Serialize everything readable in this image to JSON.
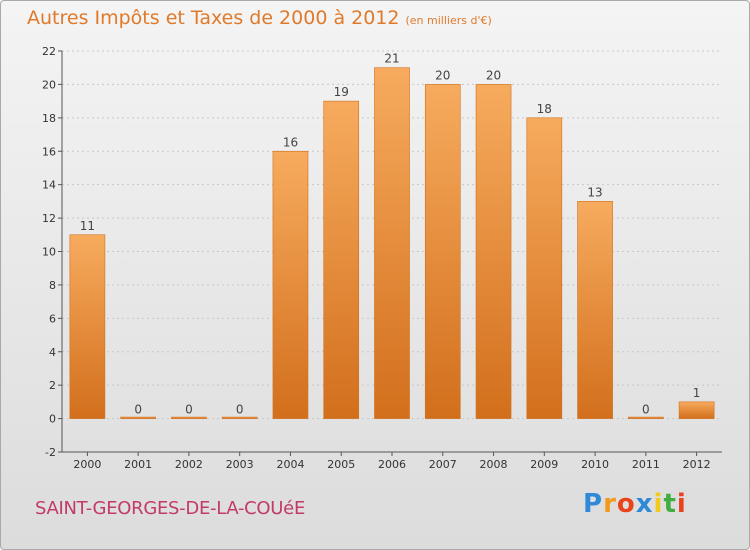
{
  "title": {
    "main": "Autres Impôts et Taxes de 2000 à 2012",
    "unit": "(en milliers d'€)"
  },
  "commune": "SAINT-GEORGES-DE-LA-COUéE",
  "logo": {
    "letters": [
      "P",
      "r",
      "o",
      "x",
      "i",
      "t",
      "i"
    ],
    "colors": [
      "#2e8ad8",
      "#f29a1f",
      "#e8431b",
      "#2e8ad8",
      "#f2c91f",
      "#3fae3f",
      "#e8431b"
    ]
  },
  "colors": {
    "bar": "#f0903a",
    "bar_light": "#f7ab5e",
    "bar_dark": "#d26f1c",
    "title": "#e07a2a",
    "commune": "#c23a6a"
  },
  "chart_data": {
    "type": "bar",
    "categories": [
      "2000",
      "2001",
      "2002",
      "2003",
      "2004",
      "2005",
      "2006",
      "2007",
      "2008",
      "2009",
      "2010",
      "2011",
      "2012"
    ],
    "values": [
      11,
      0,
      0,
      0,
      16,
      19,
      21,
      20,
      20,
      18,
      13,
      0,
      1
    ],
    "data_labels": [
      "11",
      "0",
      "0",
      "0",
      "16",
      "19",
      "21",
      "20",
      "20",
      "18",
      "13",
      "0",
      "1"
    ],
    "title": "Autres Impôts et Taxes de 2000 à 2012",
    "xlabel": "",
    "ylabel": "",
    "ylim": [
      -2,
      22
    ],
    "yticks": [
      -2,
      0,
      2,
      4,
      6,
      8,
      10,
      12,
      14,
      16,
      18,
      20,
      22
    ],
    "grid": true
  }
}
